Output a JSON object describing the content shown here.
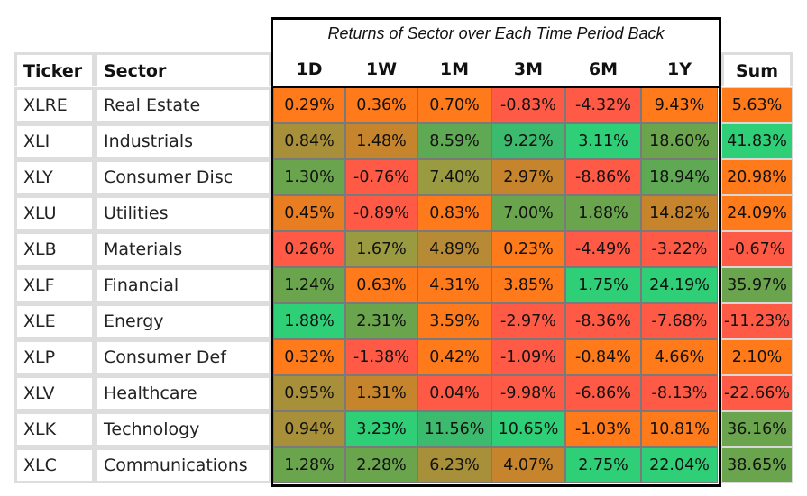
{
  "chart_data": {
    "type": "table",
    "title": "Returns of Sector over Each Time Period Back",
    "headers": {
      "ticker": "Ticker",
      "sector": "Sector",
      "sum": "Sum"
    },
    "periods": [
      "1D",
      "1W",
      "1M",
      "3M",
      "6M",
      "1Y"
    ],
    "rows": [
      {
        "ticker": "XLRE",
        "sector": "Real Estate",
        "values": [
          "0.29%",
          "0.36%",
          "0.70%",
          "-0.83%",
          "-4.32%",
          "9.43%"
        ],
        "sum": "5.63%"
      },
      {
        "ticker": "XLI",
        "sector": "Industrials",
        "values": [
          "0.84%",
          "1.48%",
          "8.59%",
          "9.22%",
          "3.11%",
          "18.60%"
        ],
        "sum": "41.83%"
      },
      {
        "ticker": "XLY",
        "sector": "Consumer Disc",
        "values": [
          "1.30%",
          "-0.76%",
          "7.40%",
          "2.97%",
          "-8.86%",
          "18.94%"
        ],
        "sum": "20.98%"
      },
      {
        "ticker": "XLU",
        "sector": "Utilities",
        "values": [
          "0.45%",
          "-0.89%",
          "0.83%",
          "7.00%",
          "1.88%",
          "14.82%"
        ],
        "sum": "24.09%"
      },
      {
        "ticker": "XLB",
        "sector": "Materials",
        "values": [
          "0.26%",
          "1.67%",
          "4.89%",
          "0.23%",
          "-4.49%",
          "-3.22%"
        ],
        "sum": "-0.67%"
      },
      {
        "ticker": "XLF",
        "sector": "Financial",
        "values": [
          "1.24%",
          "0.63%",
          "4.31%",
          "3.85%",
          "1.75%",
          "24.19%"
        ],
        "sum": "35.97%"
      },
      {
        "ticker": "XLE",
        "sector": "Energy",
        "values": [
          "1.88%",
          "2.31%",
          "3.59%",
          "-2.97%",
          "-8.36%",
          "-7.68%"
        ],
        "sum": "-11.23%"
      },
      {
        "ticker": "XLP",
        "sector": "Consumer Def",
        "values": [
          "0.32%",
          "-1.38%",
          "0.42%",
          "-1.09%",
          "-0.84%",
          "4.66%"
        ],
        "sum": "2.10%"
      },
      {
        "ticker": "XLV",
        "sector": "Healthcare",
        "values": [
          "0.95%",
          "1.31%",
          "0.04%",
          "-9.98%",
          "-6.86%",
          "-8.13%"
        ],
        "sum": "-22.66%"
      },
      {
        "ticker": "XLK",
        "sector": "Technology",
        "values": [
          "0.94%",
          "3.23%",
          "11.56%",
          "10.65%",
          "-1.03%",
          "10.81%"
        ],
        "sum": "36.16%"
      },
      {
        "ticker": "XLC",
        "sector": "Communications",
        "values": [
          "1.28%",
          "2.28%",
          "6.23%",
          "4.07%",
          "2.75%",
          "22.04%"
        ],
        "sum": "38.65%"
      }
    ],
    "colors": {
      "values": [
        [
          "#ff7a1a",
          "#ff7a1a",
          "#ff7a1a",
          "#ff5a45",
          "#ff5a45",
          "#ff7a1a"
        ],
        [
          "#a88f3a",
          "#c6842c",
          "#5fa854",
          "#3cba6e",
          "#2fcf78",
          "#6aa54e"
        ],
        [
          "#6aa54e",
          "#ff5a45",
          "#9a9a40",
          "#c6842c",
          "#ff5a45",
          "#5fa854"
        ],
        [
          "#e87d22",
          "#ff5a45",
          "#ff7a1a",
          "#6aa54e",
          "#6aa54e",
          "#c6842c"
        ],
        [
          "#ff5a45",
          "#9a9a40",
          "#b78a36",
          "#ff7a1a",
          "#ff5a45",
          "#ff5a45"
        ],
        [
          "#6aa54e",
          "#ff7a1a",
          "#ff7a1a",
          "#ff7a1a",
          "#2fcf78",
          "#2fcf78"
        ],
        [
          "#2fcf78",
          "#6aa54e",
          "#ff7a1a",
          "#ff5a45",
          "#ff5a45",
          "#ff5a45"
        ],
        [
          "#ff7a1a",
          "#ff5a45",
          "#ff7a1a",
          "#ff5a45",
          "#ff7a1a",
          "#ff7a1a"
        ],
        [
          "#a88f3a",
          "#c6842c",
          "#ff5a45",
          "#ff5a45",
          "#ff5a45",
          "#ff5a45"
        ],
        [
          "#a88f3a",
          "#2fcf78",
          "#3cba6e",
          "#2fcf78",
          "#ff7a1a",
          "#ff7a1a"
        ],
        [
          "#6aa54e",
          "#6aa54e",
          "#a88f3a",
          "#c6842c",
          "#2fcf78",
          "#2fcf78"
        ]
      ],
      "sum": [
        "#ff7a1a",
        "#2fcf78",
        "#ff7a1a",
        "#ff7a1a",
        "#ff5a45",
        "#6aa54e",
        "#ff5a45",
        "#ff7a1a",
        "#ff5a45",
        "#6aa54e",
        "#6aa54e"
      ]
    }
  }
}
